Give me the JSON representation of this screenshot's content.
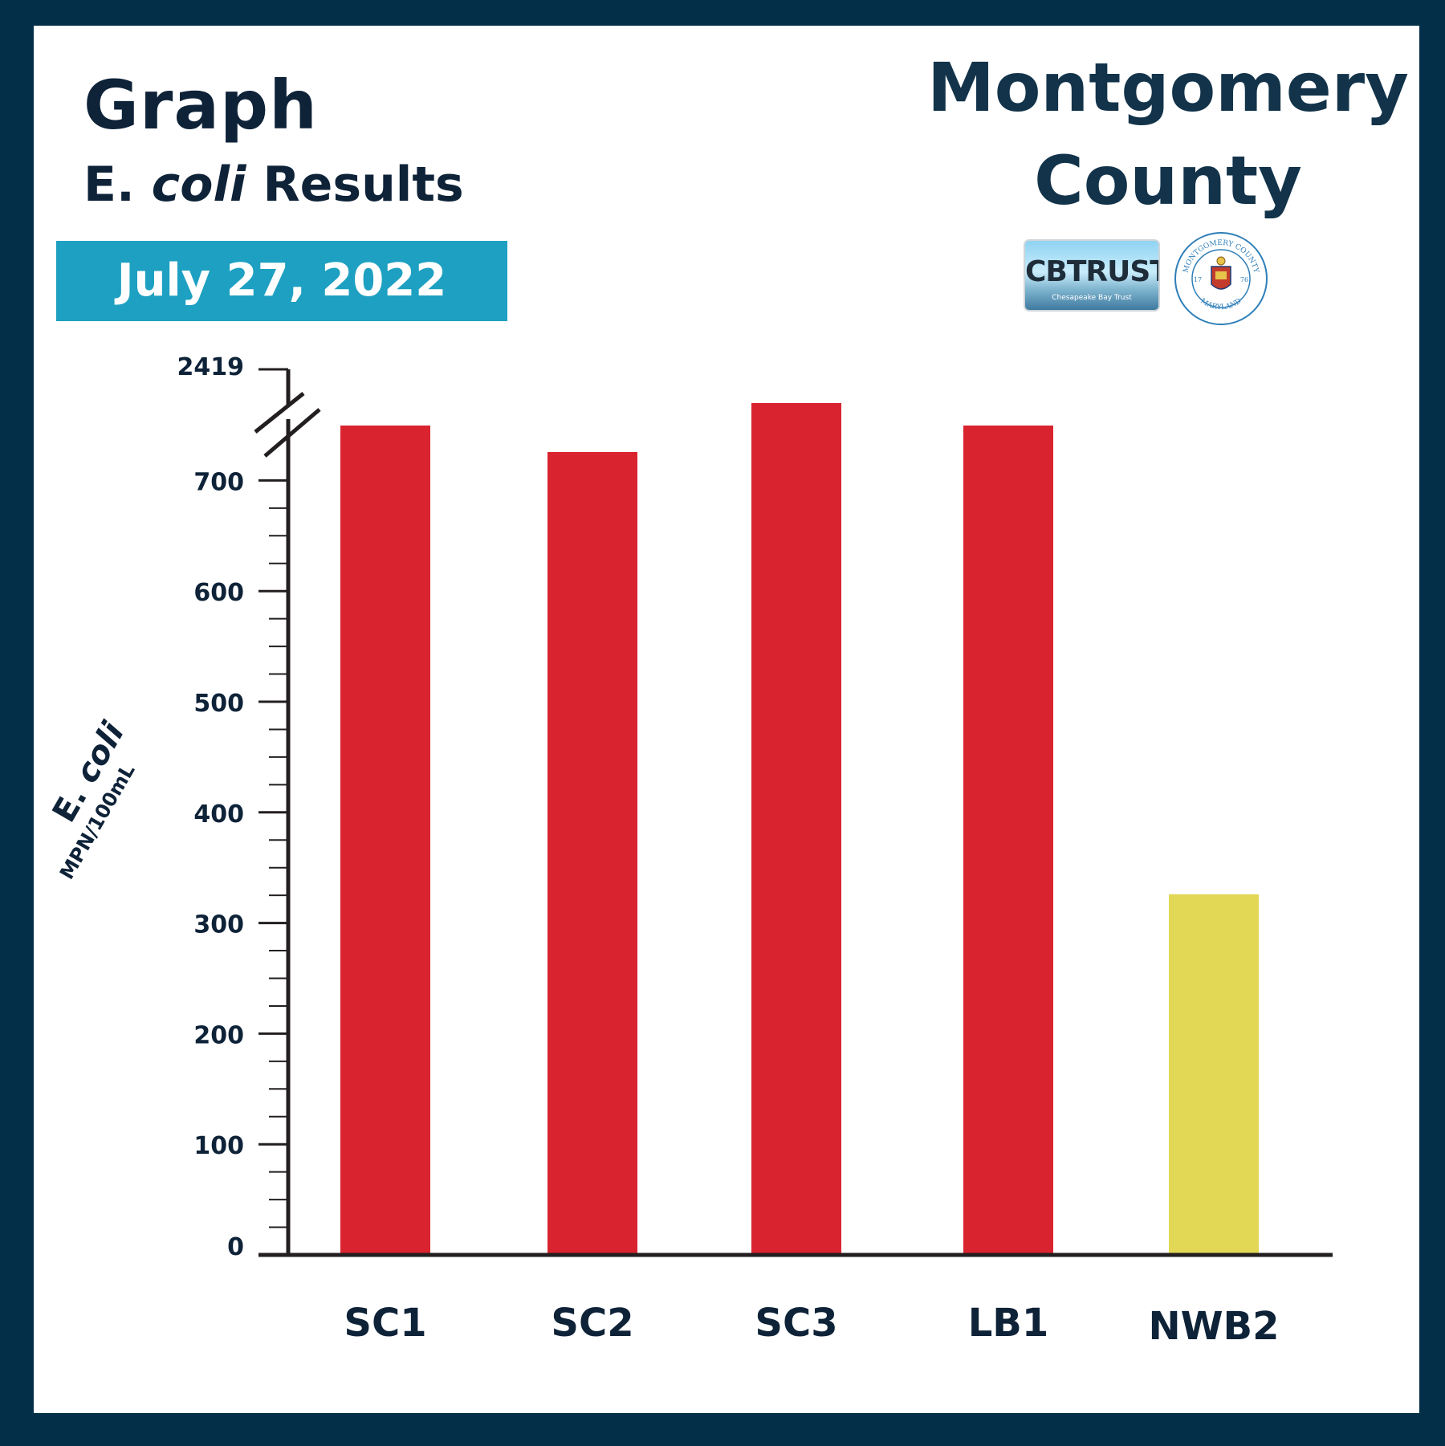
{
  "header": {
    "title": "Graph",
    "subtitle_prefix": "E. ",
    "subtitle_italic": "coli",
    "subtitle_suffix": " Results",
    "date": "July 27, 2022",
    "county_line1": "Montgomery",
    "county_line2": "County"
  },
  "logos": {
    "cbtrust_text": "CBTRUST",
    "cbtrust_tagline": "Chesapeake Bay Trust",
    "seal_top_text": "MONTGOMERY COUNTY",
    "seal_bottom_text": "MARYLAND",
    "seal_year_left": "17",
    "seal_year_right": "76"
  },
  "colors": {
    "frame": "#032f48",
    "title_text": "#0e2238",
    "date_banner": "#1da0c1",
    "bar_high": "#d92430",
    "bar_moderate": "#e3d855",
    "axis": "#231f20"
  },
  "chart_data": {
    "type": "bar",
    "title": "E. coli Results",
    "ylabel": "E. coli",
    "ylabel_units": "MPN/100mL",
    "xlabel": "",
    "ylim": [
      0,
      2419
    ],
    "axis_break": {
      "from": 700,
      "to": 2419
    },
    "yticks": [
      0,
      100,
      200,
      300,
      400,
      500,
      600,
      700
    ],
    "top_tick_label": "2419",
    "categories": [
      "SC1",
      "SC2",
      "SC3",
      "LB1",
      "NWB2"
    ],
    "values": [
      2419,
      2419,
      2419,
      2419,
      326
    ],
    "bar_colors": [
      "#d92430",
      "#d92430",
      "#d92430",
      "#d92430",
      "#e3d855"
    ],
    "grid": false,
    "legend": "none"
  }
}
